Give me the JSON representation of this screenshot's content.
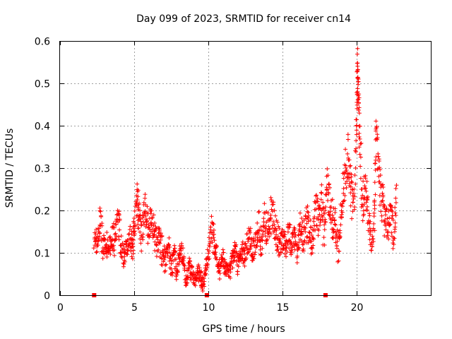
{
  "chart_data": {
    "type": "scatter",
    "title": "Day 099 of 2023, SRMTID for receiver cn14",
    "xlabel": "GPS time / hours",
    "ylabel": "SRMTID / TECUs",
    "xlim": [
      0,
      25
    ],
    "ylim": [
      0,
      0.6
    ],
    "xticks": [
      0,
      5,
      10,
      15,
      20
    ],
    "xtick_labels": [
      "0",
      "5",
      "10",
      "15",
      "20"
    ],
    "yticks": [
      0,
      0.1,
      0.2,
      0.3,
      0.4,
      0.5,
      0.6
    ],
    "ytick_labels": [
      "0",
      "0.1",
      "0.2",
      "0.3",
      "0.4",
      "0.5",
      "0.6"
    ],
    "grid": true,
    "marker": "+",
    "series": [
      {
        "name": "SRMTID",
        "color": "#ff0000",
        "x": [
          2.3,
          2.5,
          2.7,
          2.9,
          3.1,
          3.3,
          3.5,
          3.7,
          3.9,
          4.1,
          4.3,
          4.5,
          4.7,
          4.9,
          5.0,
          5.2,
          5.3,
          5.5,
          5.7,
          5.9,
          6.1,
          6.3,
          6.5,
          6.7,
          6.9,
          7.1,
          7.3,
          7.5,
          7.7,
          7.9,
          8.1,
          8.3,
          8.5,
          8.7,
          8.9,
          9.1,
          9.3,
          9.5,
          9.6,
          9.8,
          10.0,
          10.2,
          10.4,
          10.6,
          10.8,
          11.0,
          11.2,
          11.4,
          11.6,
          11.8,
          12.0,
          12.2,
          12.4,
          12.6,
          12.8,
          13.0,
          13.2,
          13.4,
          13.6,
          13.8,
          14.0,
          14.2,
          14.4,
          14.6,
          14.8,
          15.0,
          15.2,
          15.4,
          15.6,
          15.8,
          16.0,
          16.2,
          16.4,
          16.6,
          16.8,
          17.0,
          17.2,
          17.4,
          17.6,
          17.8,
          18.0,
          18.2,
          18.4,
          18.6,
          18.8,
          19.0,
          19.2,
          19.4,
          19.6,
          19.8,
          20.0,
          20.05,
          20.1,
          20.2,
          20.4,
          20.6,
          20.8,
          21.0,
          21.2,
          21.3,
          21.5,
          21.7,
          21.9,
          22.1,
          22.3,
          22.5,
          22.7
        ],
        "y": [
          0.14,
          0.12,
          0.17,
          0.11,
          0.13,
          0.1,
          0.15,
          0.12,
          0.18,
          0.13,
          0.09,
          0.12,
          0.14,
          0.11,
          0.16,
          0.23,
          0.19,
          0.14,
          0.2,
          0.16,
          0.18,
          0.15,
          0.12,
          0.14,
          0.1,
          0.08,
          0.13,
          0.07,
          0.09,
          0.06,
          0.11,
          0.08,
          0.04,
          0.07,
          0.05,
          0.03,
          0.06,
          0.04,
          0.03,
          0.05,
          0.1,
          0.15,
          0.12,
          0.08,
          0.06,
          0.09,
          0.07,
          0.05,
          0.08,
          0.1,
          0.07,
          0.11,
          0.09,
          0.12,
          0.14,
          0.1,
          0.13,
          0.16,
          0.12,
          0.18,
          0.15,
          0.2,
          0.17,
          0.14,
          0.12,
          0.13,
          0.11,
          0.15,
          0.12,
          0.14,
          0.1,
          0.16,
          0.13,
          0.18,
          0.15,
          0.12,
          0.2,
          0.17,
          0.22,
          0.14,
          0.26,
          0.2,
          0.18,
          0.15,
          0.1,
          0.22,
          0.28,
          0.33,
          0.25,
          0.2,
          0.42,
          0.55,
          0.48,
          0.38,
          0.22,
          0.26,
          0.19,
          0.12,
          0.17,
          0.41,
          0.28,
          0.22,
          0.18,
          0.16,
          0.2,
          0.13,
          0.25
        ],
        "scatter_spread": [
          0.03,
          0.03,
          0.04,
          0.03,
          0.03,
          0.03,
          0.04,
          0.03,
          0.04,
          0.03,
          0.03,
          0.03,
          0.03,
          0.03,
          0.04,
          0.05,
          0.04,
          0.04,
          0.05,
          0.04,
          0.04,
          0.04,
          0.03,
          0.04,
          0.03,
          0.03,
          0.03,
          0.03,
          0.03,
          0.02,
          0.03,
          0.02,
          0.02,
          0.02,
          0.02,
          0.01,
          0.02,
          0.02,
          0.02,
          0.02,
          0.03,
          0.04,
          0.03,
          0.03,
          0.02,
          0.03,
          0.02,
          0.02,
          0.02,
          0.03,
          0.02,
          0.03,
          0.03,
          0.03,
          0.03,
          0.03,
          0.03,
          0.04,
          0.03,
          0.04,
          0.04,
          0.05,
          0.04,
          0.04,
          0.03,
          0.03,
          0.03,
          0.04,
          0.03,
          0.03,
          0.03,
          0.04,
          0.03,
          0.05,
          0.04,
          0.03,
          0.05,
          0.04,
          0.05,
          0.04,
          0.05,
          0.05,
          0.05,
          0.04,
          0.03,
          0.05,
          0.06,
          0.06,
          0.05,
          0.05,
          0.06,
          0.03,
          0.05,
          0.06,
          0.05,
          0.05,
          0.04,
          0.03,
          0.04,
          0.03,
          0.05,
          0.05,
          0.04,
          0.04,
          0.04,
          0.03,
          0.04
        ]
      }
    ],
    "axis_markers": {
      "x": [
        2.3,
        9.9,
        17.9
      ],
      "y": 0,
      "color": "#ff0000"
    }
  }
}
